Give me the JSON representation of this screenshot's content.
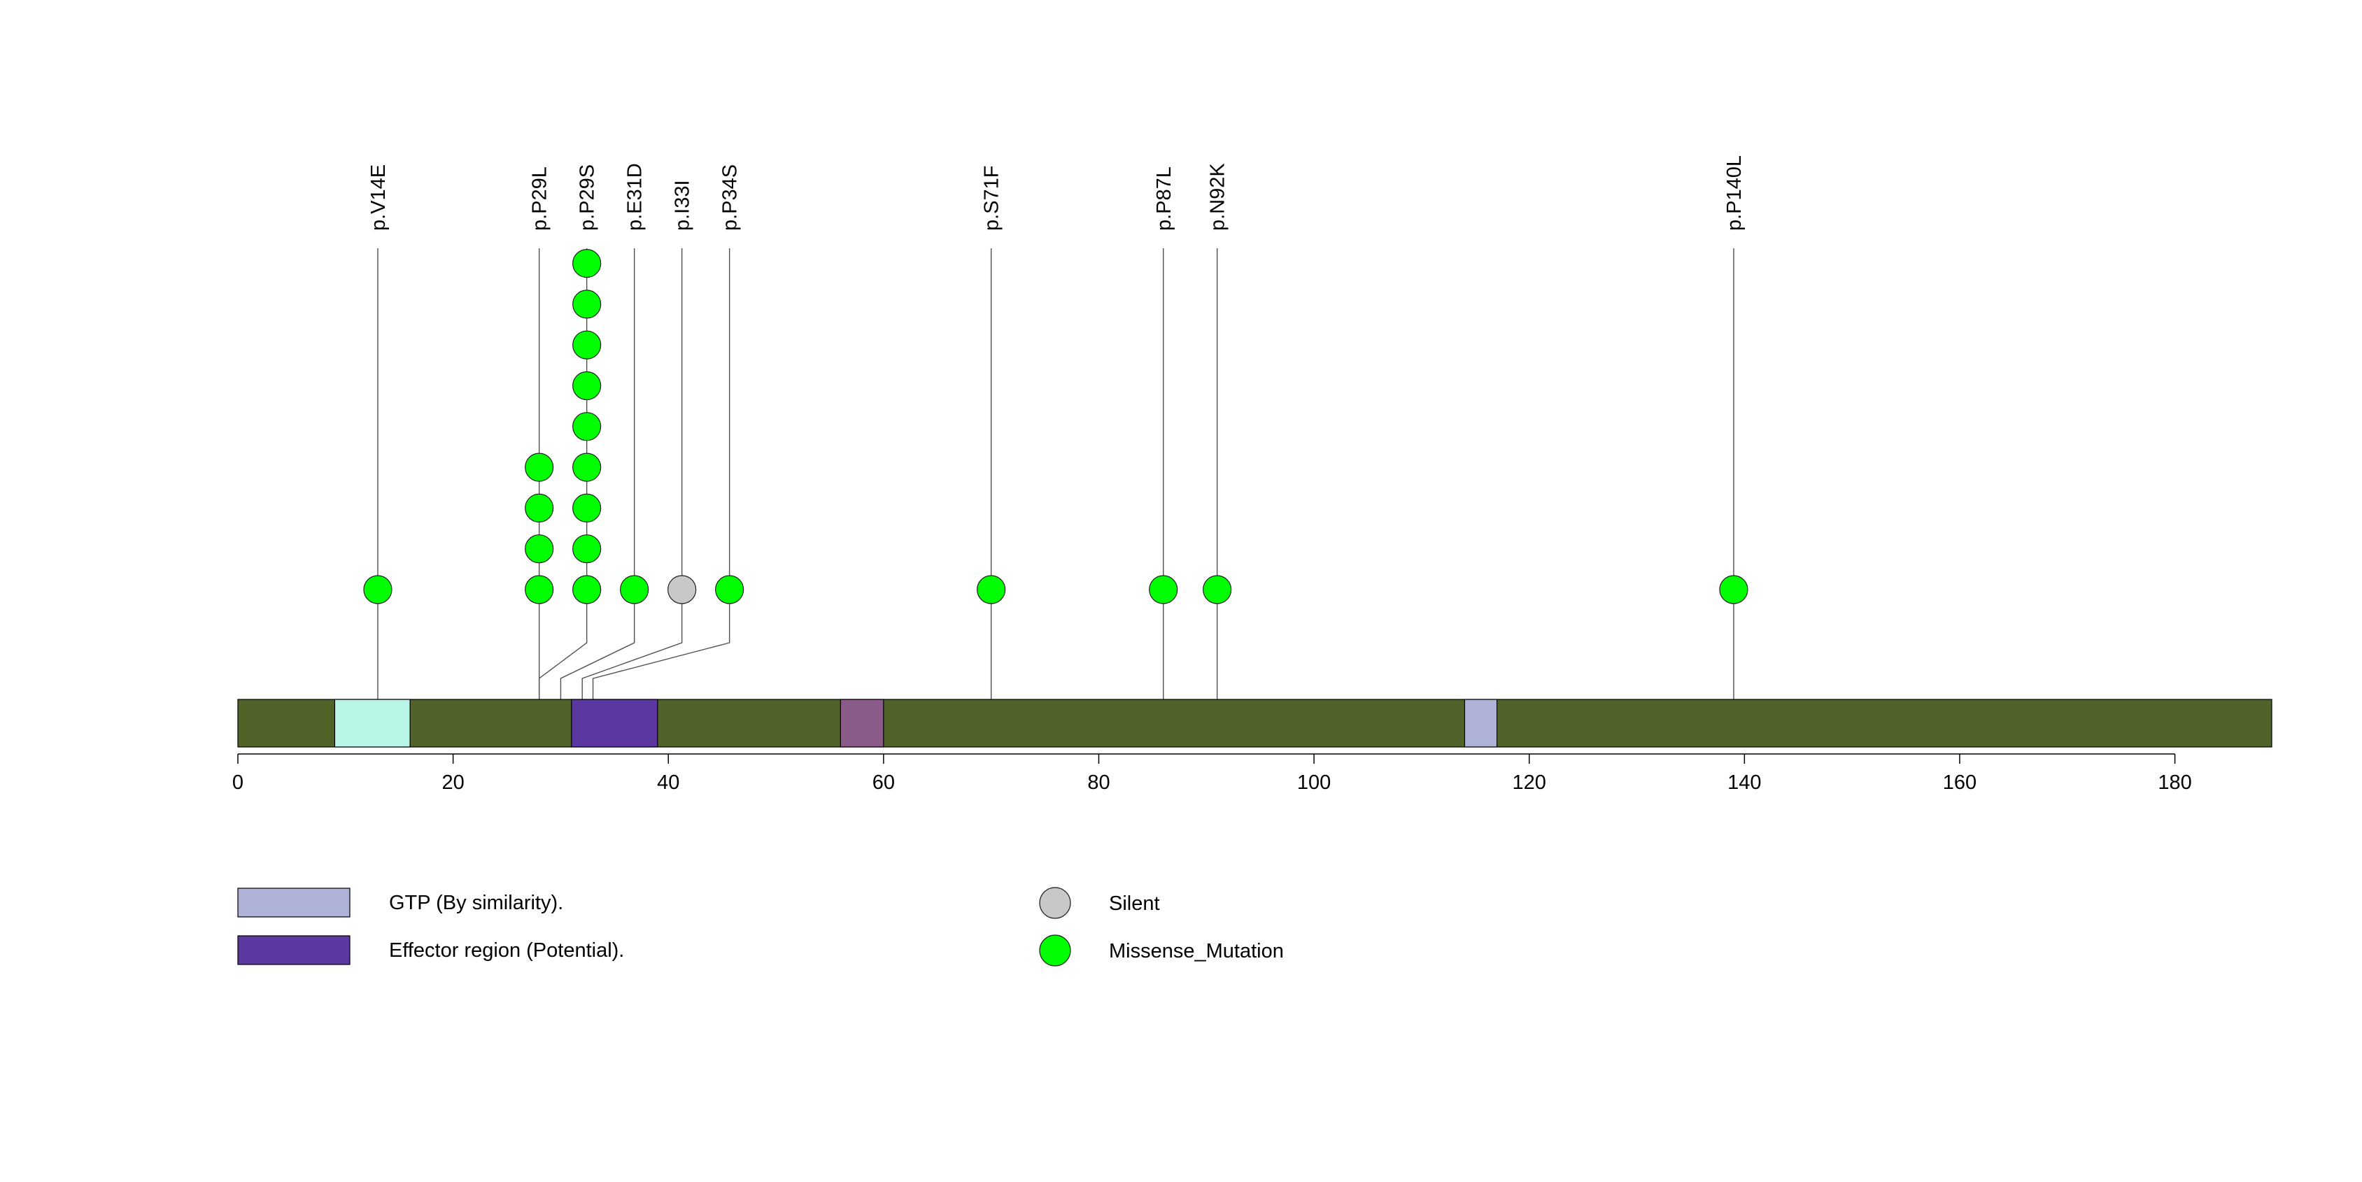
{
  "chart_data": {
    "type": "lollipop",
    "title": "",
    "xlabel": "",
    "ylabel": "",
    "xlim": [
      0,
      189
    ],
    "x_ticks": [
      0,
      20,
      40,
      60,
      80,
      100,
      120,
      140,
      160,
      180
    ],
    "protein_length": 189,
    "backbone_color": "#526329",
    "domains": [
      {
        "name": "GTP (By similarity).",
        "start": 9,
        "end": 16,
        "color": "#b8f5e6",
        "in_legend": false
      },
      {
        "name": "Effector region (Potential).",
        "start": 31,
        "end": 39,
        "color": "#5a38a0",
        "in_legend": true
      },
      {
        "name": "GTP (By similarity).",
        "start": 56,
        "end": 60,
        "color": "#8a5b88",
        "in_legend": false
      },
      {
        "name": "GTP (By similarity).",
        "start": 114,
        "end": 117,
        "color": "#adb2d6",
        "in_legend": true
      }
    ],
    "mutations": [
      {
        "label": "p.V14E",
        "position": 13,
        "count": 1,
        "type": "Missense_Mutation"
      },
      {
        "label": "p.P29L",
        "position": 28,
        "count": 4,
        "type": "Missense_Mutation"
      },
      {
        "label": "p.P29S",
        "position": 28,
        "count": 9,
        "type": "Missense_Mutation"
      },
      {
        "label": "p.E31D",
        "position": 30,
        "count": 1,
        "type": "Missense_Mutation"
      },
      {
        "label": "p.I33I",
        "position": 32,
        "count": 1,
        "type": "Silent"
      },
      {
        "label": "p.P34S",
        "position": 33,
        "count": 1,
        "type": "Missense_Mutation"
      },
      {
        "label": "p.S71F",
        "position": 70,
        "count": 1,
        "type": "Missense_Mutation"
      },
      {
        "label": "p.P87L",
        "position": 86,
        "count": 1,
        "type": "Missense_Mutation"
      },
      {
        "label": "p.N92K",
        "position": 91,
        "count": 1,
        "type": "Missense_Mutation"
      },
      {
        "label": "p.P140L",
        "position": 139,
        "count": 1,
        "type": "Missense_Mutation"
      }
    ],
    "mutation_colors": {
      "Silent": "#c8c8c8",
      "Missense_Mutation": "#00ff00"
    },
    "legend_domains": [
      {
        "label": "GTP (By similarity).",
        "color": "#adb2d6"
      },
      {
        "label": "Effector region (Potential).",
        "color": "#5a38a0"
      }
    ],
    "legend_mutations": [
      {
        "label": "Silent",
        "color": "#c8c8c8"
      },
      {
        "label": "Missense_Mutation",
        "color": "#00ff00"
      }
    ]
  }
}
